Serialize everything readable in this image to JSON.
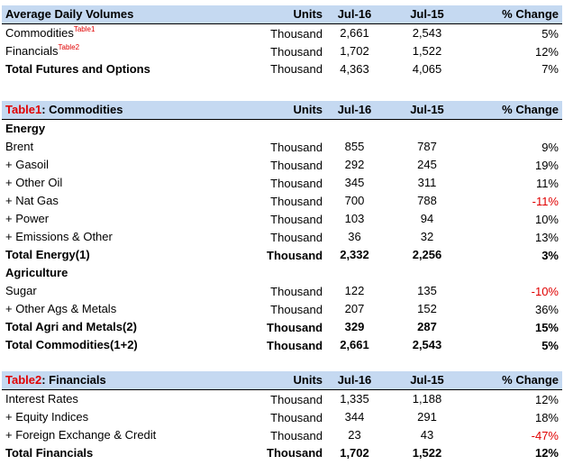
{
  "summary": {
    "headers": [
      "Average Daily Volumes",
      "Units",
      "Jul-16",
      "Jul-15",
      "% Change"
    ],
    "rows": [
      {
        "name": "Commodities",
        "note": "Table1",
        "units": "Thousand",
        "jul16": "2,661",
        "jul15": "2,543",
        "pct": "5%"
      },
      {
        "name": "Financials",
        "note": "Table2",
        "units": "Thousand",
        "jul16": "1,702",
        "jul15": "1,522",
        "pct": "12%"
      },
      {
        "name": "Total Futures and Options",
        "units": "Thousand",
        "jul16": "4,363",
        "jul15": "4,065",
        "pct": "7%"
      }
    ]
  },
  "commodities": {
    "prefix": "Table1",
    "title": ": Commodities",
    "headers": [
      "Units",
      "Jul-16",
      "Jul-15",
      "% Change"
    ],
    "energy_label": "Energy",
    "energy_rows": [
      {
        "name": "Brent",
        "units": "Thousand",
        "jul16": "855",
        "jul15": "787",
        "pct": "9%"
      },
      {
        "name": "+ Gasoil",
        "units": "Thousand",
        "jul16": "292",
        "jul15": "245",
        "pct": "19%"
      },
      {
        "name": "+ Other Oil",
        "units": "Thousand",
        "jul16": "345",
        "jul15": "311",
        "pct": "11%"
      },
      {
        "name": "+ Nat Gas",
        "units": "Thousand",
        "jul16": "700",
        "jul15": "788",
        "pct": "-11%"
      },
      {
        "name": "+ Power",
        "units": "Thousand",
        "jul16": "103",
        "jul15": "94",
        "pct": "10%"
      },
      {
        "name": "+ Emissions & Other",
        "units": "Thousand",
        "jul16": "36",
        "jul15": "32",
        "pct": "13%"
      }
    ],
    "energy_total": {
      "name": "Total Energy(1)",
      "units": "Thousand",
      "jul16": "2,332",
      "jul15": "2,256",
      "pct": "3%"
    },
    "agri_label": "Agriculture",
    "agri_rows": [
      {
        "name": "Sugar",
        "units": "Thousand",
        "jul16": "122",
        "jul15": "135",
        "pct": "-10%"
      },
      {
        "name": "+ Other Ags & Metals",
        "units": "Thousand",
        "jul16": "207",
        "jul15": "152",
        "pct": "36%"
      }
    ],
    "agri_total": {
      "name": "Total Agri and Metals(2)",
      "units": "Thousand",
      "jul16": "329",
      "jul15": "287",
      "pct": "15%"
    },
    "grand_total": {
      "name": "Total Commodities(1+2)",
      "units": "Thousand",
      "jul16": "2,661",
      "jul15": "2,543",
      "pct": "5%"
    }
  },
  "financials": {
    "prefix": "Table2",
    "title": ": Financials",
    "headers": [
      "Units",
      "Jul-16",
      "Jul-15",
      "% Change"
    ],
    "rows": [
      {
        "name": "Interest Rates",
        "units": "Thousand",
        "jul16": "1,335",
        "jul15": "1,188",
        "pct": "12%"
      },
      {
        "name": "+ Equity Indices",
        "units": "Thousand",
        "jul16": "344",
        "jul15": "291",
        "pct": "18%"
      },
      {
        "name": "+ Foreign Exchange & Credit",
        "units": "Thousand",
        "jul16": "23",
        "jul15": "43",
        "pct": "-47%"
      }
    ],
    "total": {
      "name": "Total Financials",
      "units": "Thousand",
      "jul16": "1,702",
      "jul15": "1,522",
      "pct": "12%"
    }
  },
  "colors": {
    "header_bg": "#c5d9f1",
    "negative": "#e00000",
    "table_label": "#e00000"
  }
}
